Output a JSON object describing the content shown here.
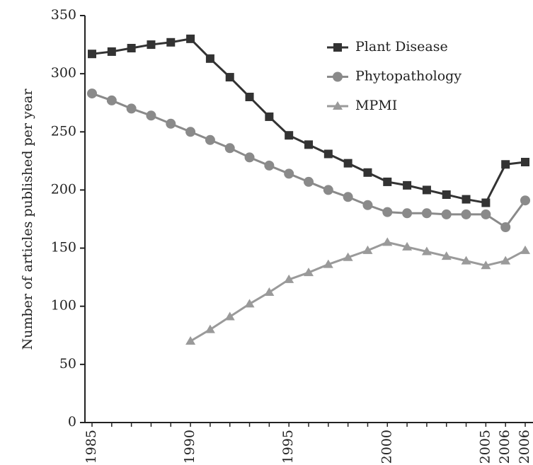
{
  "chart_data": {
    "type": "line",
    "y_label": "Number of articles published per year",
    "categories": [
      "1985",
      null,
      null,
      null,
      null,
      "1990",
      null,
      null,
      null,
      null,
      "1995",
      null,
      null,
      null,
      null,
      "2000",
      null,
      null,
      null,
      null,
      "2005",
      "2006",
      "2006"
    ],
    "series": [
      {
        "name": "Plant Disease",
        "color": "#333333",
        "marker": "square",
        "values": [
          317,
          319,
          322,
          325,
          327,
          330,
          313,
          297,
          280,
          263,
          247,
          239,
          231,
          223,
          215,
          207,
          204,
          200,
          196,
          192,
          189,
          222,
          224
        ]
      },
      {
        "name": "Phytopathology",
        "color": "#8a8a8a",
        "marker": "circle",
        "values": [
          283,
          277,
          270,
          264,
          257,
          250,
          243,
          236,
          228,
          221,
          214,
          207,
          200,
          194,
          187,
          181,
          180,
          180,
          179,
          179,
          179,
          168,
          191
        ]
      },
      {
        "name": "MPMI",
        "color": "#9a9a9a",
        "marker": "triangle",
        "values": [
          null,
          null,
          null,
          null,
          null,
          70,
          80,
          91,
          102,
          112,
          123,
          129,
          136,
          142,
          148,
          155,
          151,
          147,
          143,
          139,
          135,
          139,
          148
        ]
      }
    ],
    "ylim": [
      0,
      350
    ],
    "yticks": [
      0,
      50,
      100,
      150,
      200,
      250,
      300,
      350
    ],
    "legend": "upper right"
  }
}
